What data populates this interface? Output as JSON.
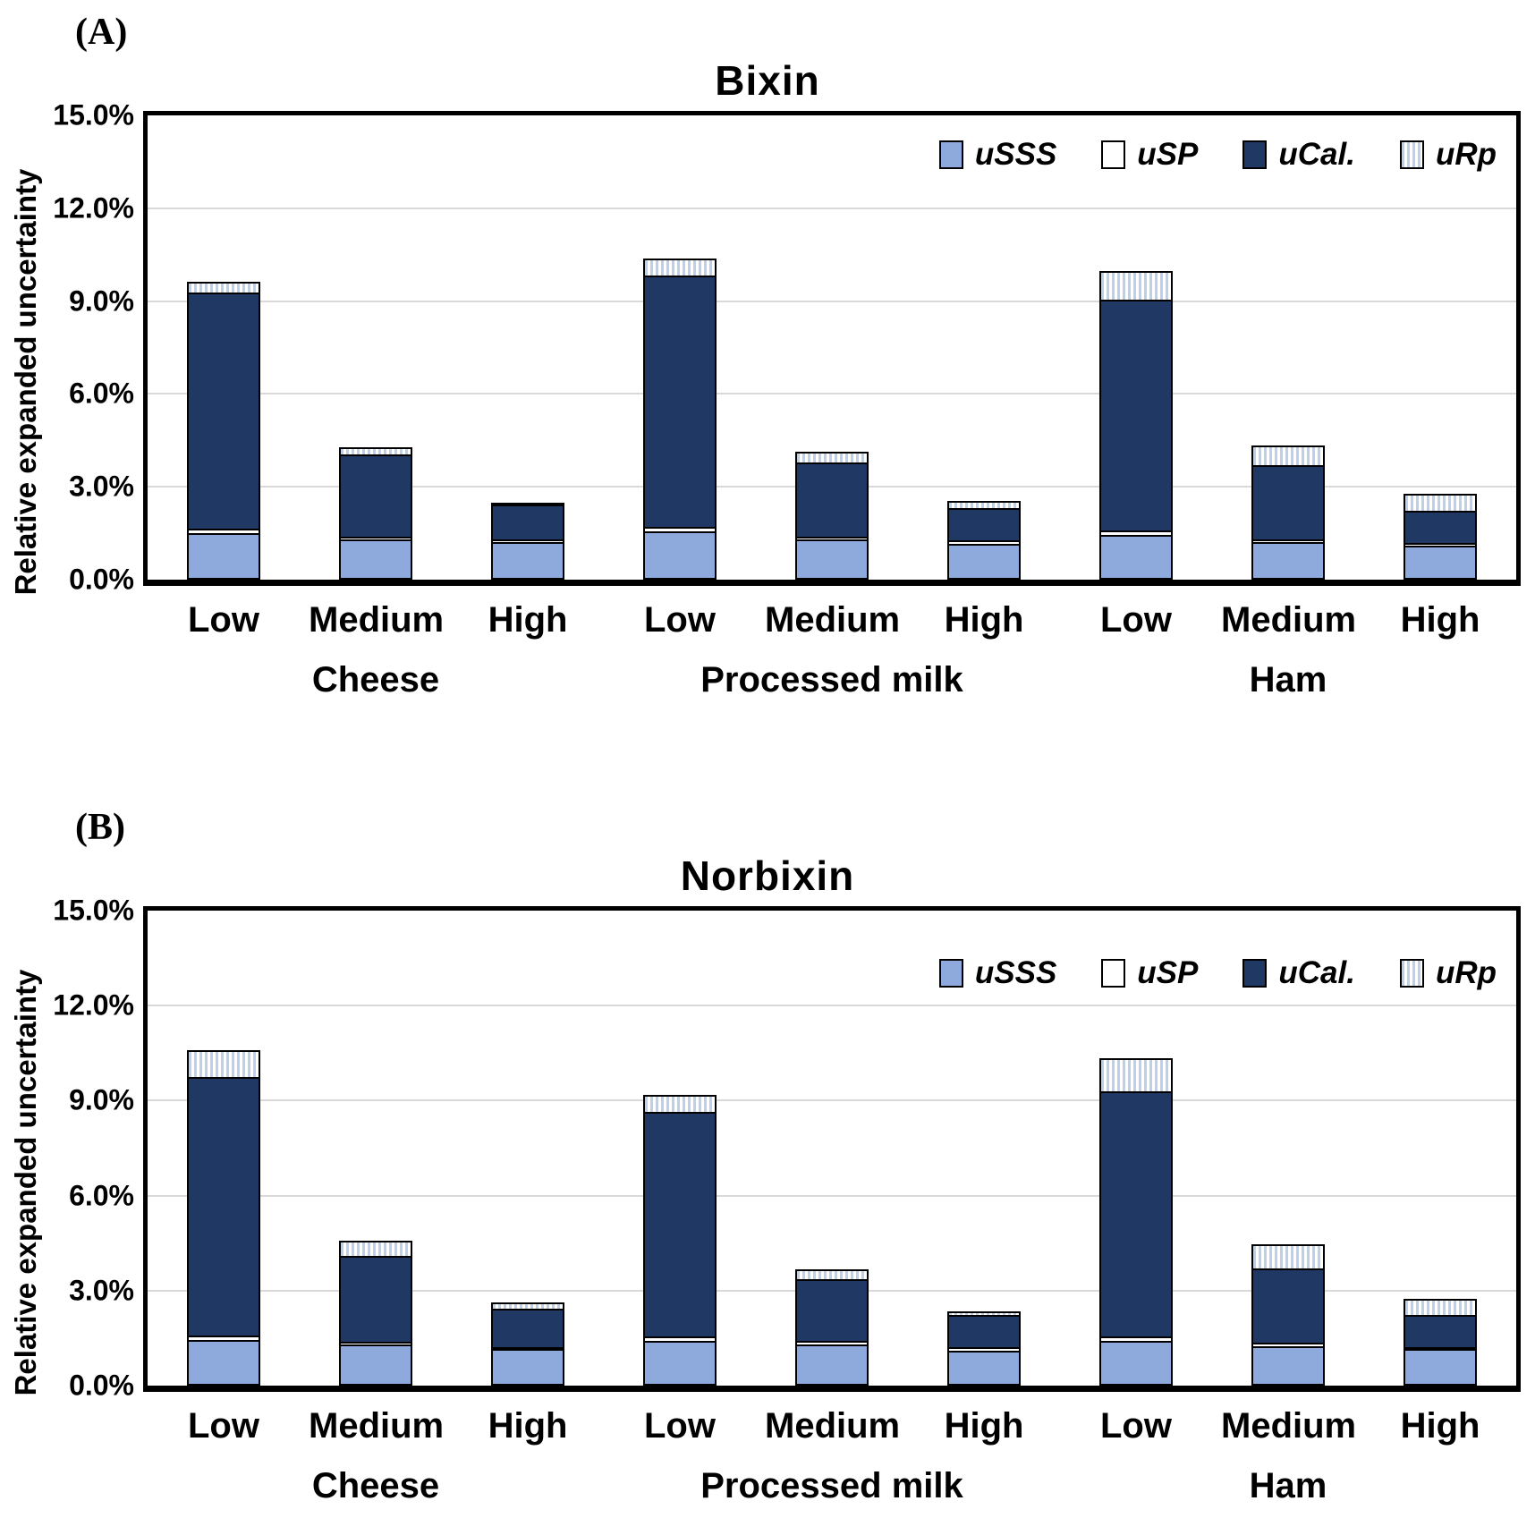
{
  "page": {
    "background": "#ffffff"
  },
  "colors": {
    "uSSS": "#8EA9DB",
    "uSP": "#FFFFFF",
    "uCal": "#1F3864",
    "uRp_stripe": "#BDD0E9",
    "uRp_stripe_bg": "#FFFFFF",
    "bar_border": "#000000",
    "gridline": "#D9D9D9",
    "axis": "#000000"
  },
  "chart_data": [
    {
      "type": "bar",
      "stacked": true,
      "panel_label": "(A)",
      "title": "Bixin",
      "ylabel": "Relative expanded uncertainty",
      "ylim": [
        0,
        15
      ],
      "yticks": [
        {
          "v": 15,
          "label": "15.0%"
        },
        {
          "v": 12,
          "label": "12.0%"
        },
        {
          "v": 9,
          "label": "9.0%"
        },
        {
          "v": 6,
          "label": "6.0%"
        },
        {
          "v": 3,
          "label": "3.0%"
        },
        {
          "v": 0,
          "label": "0.0%"
        }
      ],
      "grid_values": [
        3,
        6,
        9,
        12
      ],
      "grid": true,
      "legend_position": "top-right-inside",
      "groups": [
        "Cheese",
        "Processed milk",
        "Ham"
      ],
      "levels": [
        "Low",
        "Medium",
        "High"
      ],
      "categories": [
        "Cheese Low",
        "Cheese Medium",
        "Cheese High",
        "Processed milk Low",
        "Processed milk Medium",
        "Processed milk High",
        "Ham Low",
        "Ham Medium",
        "Ham High"
      ],
      "series": [
        {
          "name": "uSSS",
          "swatch": "solid",
          "color": "#8EA9DB",
          "values": [
            1.5,
            1.3,
            1.2,
            1.55,
            1.3,
            1.15,
            1.45,
            1.2,
            1.1
          ]
        },
        {
          "name": "uSP",
          "swatch": "solid",
          "color": "#FFFFFF",
          "values": [
            0.2,
            0.15,
            0.15,
            0.2,
            0.15,
            0.18,
            0.2,
            0.17,
            0.15
          ]
        },
        {
          "name": "uCal.",
          "swatch": "solid",
          "color": "#1F3864",
          "values": [
            7.7,
            2.7,
            1.2,
            8.2,
            2.45,
            1.1,
            7.5,
            2.45,
            1.1
          ]
        },
        {
          "name": "uRp",
          "swatch": "stripes",
          "color": "#BDD0E9",
          "values": [
            0.4,
            0.3,
            0.1,
            0.6,
            0.4,
            0.28,
            1.0,
            0.7,
            0.6
          ]
        }
      ],
      "totals": [
        9.8,
        4.45,
        2.65,
        10.55,
        4.3,
        2.71,
        10.15,
        4.52,
        2.95
      ]
    },
    {
      "type": "bar",
      "stacked": true,
      "panel_label": "(B)",
      "title": "Norbixin",
      "ylabel": "Relative expanded uncertainty",
      "ylim": [
        0,
        15
      ],
      "yticks": [
        {
          "v": 15,
          "label": "15.0%"
        },
        {
          "v": 12,
          "label": "12.0%"
        },
        {
          "v": 9,
          "label": "9.0%"
        },
        {
          "v": 6,
          "label": "6.0%"
        },
        {
          "v": 3,
          "label": "3.0%"
        },
        {
          "v": 0,
          "label": "0.0%"
        }
      ],
      "grid_values": [
        3,
        6,
        9,
        12
      ],
      "grid": true,
      "legend_position": "top-right-inside",
      "groups": [
        "Cheese",
        "Processed milk",
        "Ham"
      ],
      "levels": [
        "Low",
        "Medium",
        "High"
      ],
      "categories": [
        "Cheese Low",
        "Cheese Medium",
        "Cheese High",
        "Processed milk Low",
        "Processed milk Medium",
        "Processed milk High",
        "Ham Low",
        "Ham Medium",
        "Ham High"
      ],
      "series": [
        {
          "name": "uSSS",
          "swatch": "solid",
          "color": "#8EA9DB",
          "values": [
            1.45,
            1.3,
            1.15,
            1.4,
            1.3,
            1.1,
            1.4,
            1.25,
            1.15
          ]
        },
        {
          "name": "uSP",
          "swatch": "solid",
          "color": "#FFFFFF",
          "values": [
            0.2,
            0.15,
            0.12,
            0.2,
            0.17,
            0.17,
            0.2,
            0.17,
            0.11
          ]
        },
        {
          "name": "uCal.",
          "swatch": "solid",
          "color": "#1F3864",
          "values": [
            8.2,
            2.75,
            1.28,
            7.15,
            2.0,
            1.07,
            7.8,
            2.4,
            1.08
          ]
        },
        {
          "name": "uRp",
          "swatch": "stripes",
          "color": "#BDD0E9",
          "values": [
            0.9,
            0.55,
            0.25,
            0.6,
            0.36,
            0.17,
            1.1,
            0.8,
            0.56
          ]
        }
      ],
      "totals": [
        10.75,
        4.75,
        2.8,
        9.35,
        3.83,
        2.51,
        10.5,
        4.62,
        2.9
      ]
    }
  ]
}
